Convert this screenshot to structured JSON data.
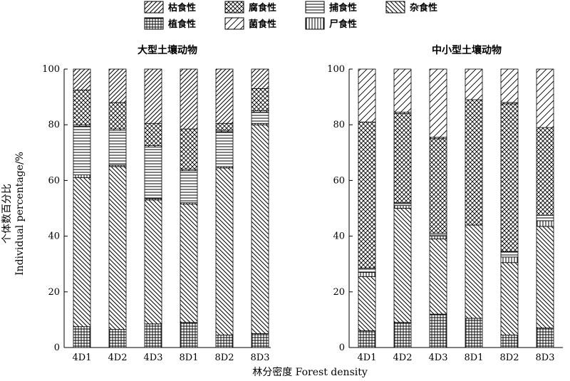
{
  "chart_data": [
    {
      "type": "bar",
      "stacked": true,
      "title": "大型土壤动物",
      "categories": [
        "4D1",
        "4D2",
        "4D3",
        "8D1",
        "8D2",
        "8D3"
      ],
      "ylim": [
        0,
        100
      ],
      "yticks": [
        0,
        20,
        40,
        60,
        80,
        100
      ],
      "series": [
        {
          "name": "植食性",
          "values": [
            7.5,
            6.5,
            8.5,
            9.0,
            4.5,
            5.0
          ]
        },
        {
          "name": "杂食性",
          "values": [
            53.5,
            58.5,
            44.5,
            42.5,
            60.0,
            75.0
          ]
        },
        {
          "name": "尸食性",
          "values": [
            1.0,
            0.5,
            0.5,
            0.5,
            0.5,
            0.5
          ]
        },
        {
          "name": "捕食性",
          "values": [
            17.5,
            12.5,
            18.5,
            11.5,
            12.5,
            4.0
          ]
        },
        {
          "name": "菌食性",
          "values": [
            0.5,
            0.5,
            0.5,
            0.5,
            0.5,
            0.5
          ]
        },
        {
          "name": "腐食性",
          "values": [
            12.5,
            9.5,
            8.0,
            14.5,
            2.5,
            8.0
          ]
        },
        {
          "name": "枯食性",
          "values": [
            7.5,
            12.0,
            19.5,
            21.5,
            19.5,
            7.0
          ]
        }
      ]
    },
    {
      "type": "bar",
      "stacked": true,
      "title": "中小型土壤动物",
      "categories": [
        "4D1",
        "4D2",
        "4D3",
        "8D1",
        "8D2",
        "8D3"
      ],
      "ylim": [
        0,
        100
      ],
      "yticks": [
        0,
        20,
        40,
        60,
        80,
        100
      ],
      "series": [
        {
          "name": "植食性",
          "values": [
            6.0,
            9.0,
            12.0,
            10.5,
            4.5,
            7.0
          ]
        },
        {
          "name": "杂食性",
          "values": [
            19.5,
            41.0,
            27.0,
            33.5,
            26.0,
            36.5
          ]
        },
        {
          "name": "尸食性",
          "values": [
            1.5,
            1.0,
            1.0,
            0.0,
            2.0,
            2.0
          ]
        },
        {
          "name": "捕食性",
          "values": [
            1.5,
            1.0,
            1.0,
            0.0,
            2.0,
            2.0
          ]
        },
        {
          "name": "腐食性",
          "values": [
            52.5,
            32.0,
            34.0,
            45.0,
            53.0,
            31.5
          ]
        },
        {
          "name": "枯食性",
          "values": [
            0.0,
            0.5,
            0.5,
            0.0,
            0.5,
            0.0
          ]
        },
        {
          "name": "菌食性",
          "values": [
            19.0,
            15.5,
            24.5,
            11.0,
            12.0,
            21.0
          ]
        }
      ]
    }
  ],
  "legend": [
    {
      "label": "枯食性",
      "pattern": "diag-up"
    },
    {
      "label": "腐食性",
      "pattern": "crosshatch"
    },
    {
      "label": "捕食性",
      "pattern": "horizontal"
    },
    {
      "label": "杂食性",
      "pattern": "diag-down"
    },
    {
      "label": "植食性",
      "pattern": "grid"
    },
    {
      "label": "菌食性",
      "pattern": "diag-up-sparse"
    },
    {
      "label": "尸食性",
      "pattern": "vertical"
    }
  ],
  "ylabel_cn": "个体数百分比",
  "ylabel_en": "Individual percentage/%",
  "xlabel": "林分密度 Forest density"
}
